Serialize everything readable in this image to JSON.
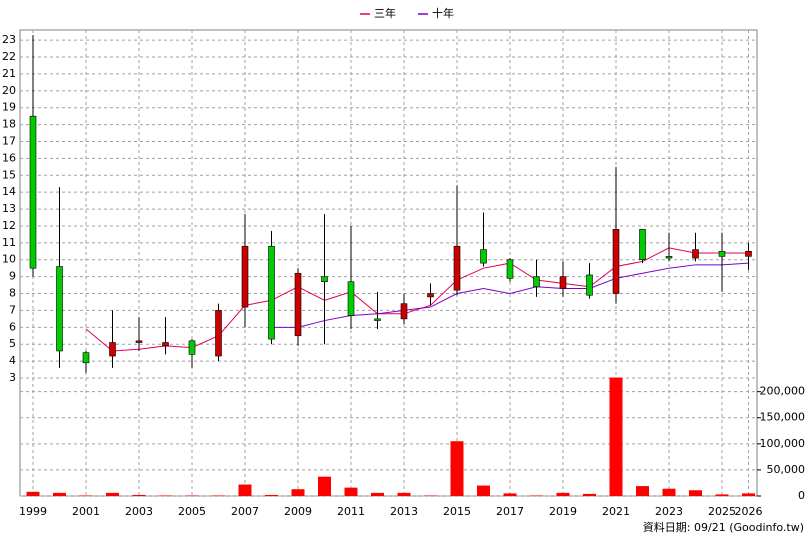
{
  "chart_data": {
    "type": "candlestick",
    "categories": [
      "1999",
      null,
      "2001",
      null,
      "2003",
      null,
      "2005",
      null,
      "2007",
      null,
      "2009",
      null,
      "2011",
      null,
      "2013",
      null,
      "2015",
      null,
      "2017",
      null,
      "2019",
      null,
      "2021",
      null,
      "2023",
      null,
      "2025",
      "2026"
    ],
    "open": [
      18.5,
      9.6,
      4.5,
      4.3,
      5.1,
      4.9,
      5.2,
      4.3,
      7.2,
      10.8,
      5.5,
      9.0,
      8.7,
      6.5,
      6.5,
      7.8,
      8.2,
      10.6,
      10.0,
      9.0,
      8.3,
      9.1,
      8.0,
      11.8,
      10.2,
      10.1,
      10.5,
      10.2
    ],
    "high": [
      23.3,
      14.3,
      4.6,
      7.0,
      6.6,
      6.6,
      5.3,
      7.4,
      12.7,
      11.7,
      9.5,
      12.7,
      12.0,
      8.1,
      8.0,
      8.6,
      14.4,
      12.8,
      10.1,
      10.0,
      9.9,
      9.8,
      15.5,
      11.8,
      11.6,
      11.6,
      11.6,
      11.0
    ],
    "low": [
      9.0,
      3.6,
      3.3,
      3.6,
      4.6,
      4.4,
      3.6,
      4.0,
      6.0,
      5.0,
      4.9,
      5.0,
      5.9,
      5.9,
      6.2,
      7.3,
      7.9,
      9.6,
      8.7,
      7.8,
      7.8,
      7.7,
      7.4,
      9.8,
      9.9,
      9.9,
      8.1,
      9.4
    ],
    "close": [
      9.5,
      4.6,
      3.9,
      5.1,
      5.2,
      5.1,
      4.4,
      7.0,
      10.8,
      5.3,
      9.2,
      8.7,
      6.7,
      6.4,
      7.4,
      8.0,
      10.8,
      9.8,
      8.9,
      8.4,
      9.0,
      7.9,
      11.8,
      10.0,
      10.1,
      10.6,
      10.2,
      10.5
    ],
    "up_color": "#cc0000",
    "down_color": "#00cc00",
    "series": [
      {
        "name": "三年",
        "color": "#e0005a",
        "values": [
          null,
          null,
          5.9,
          4.6,
          4.7,
          4.9,
          4.8,
          5.5,
          7.3,
          7.6,
          8.4,
          7.6,
          8.1,
          6.8,
          6.8,
          7.3,
          8.8,
          9.5,
          9.8,
          8.8,
          8.6,
          8.4,
          9.6,
          9.9,
          10.7,
          10.4,
          10.4,
          10.4
        ]
      },
      {
        "name": "十年",
        "color": "#7a00cc",
        "values": [
          null,
          null,
          null,
          null,
          null,
          null,
          null,
          null,
          null,
          6.0,
          6.0,
          6.4,
          6.7,
          6.8,
          7.0,
          7.2,
          8.0,
          8.3,
          8.0,
          8.4,
          8.3,
          8.3,
          8.9,
          9.2,
          9.5,
          9.7,
          9.7,
          9.8
        ]
      }
    ],
    "volume": {
      "color": "#ff0000",
      "axis": "y2",
      "values": [
        8000,
        6000,
        1000,
        6000,
        2000,
        1000,
        1000,
        1000,
        22000,
        2000,
        13000,
        37000,
        16000,
        6000,
        6000,
        1000,
        105000,
        20000,
        5000,
        1000,
        6000,
        4000,
        227000,
        19000,
        14000,
        11000,
        3000,
        5000
      ]
    },
    "ylim": [
      3,
      23.6
    ],
    "yticks": [
      3,
      4,
      5,
      6,
      7,
      8,
      9,
      10,
      11,
      12,
      13,
      14,
      15,
      16,
      17,
      18,
      19,
      20,
      21,
      22,
      23
    ],
    "y2lim": [
      0,
      230000
    ],
    "y2ticks": [
      0,
      {
        "value": 50000,
        "label": "50,000"
      },
      {
        "value": 100000,
        "label": "100,000"
      },
      {
        "value": 150000,
        "label": "150,000"
      },
      {
        "value": 200000,
        "label": "200,000"
      }
    ],
    "grid": true,
    "footer": "資料日期: 09/21  (Goodinfo.tw)"
  }
}
